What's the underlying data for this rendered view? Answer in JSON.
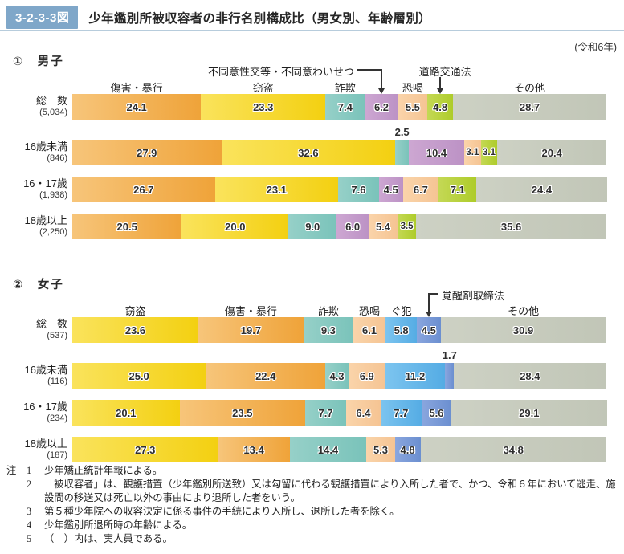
{
  "header": {
    "badge": "3-2-3-3図",
    "title": "少年鑑別所被収容者の非行名別構成比（男女別、年齢層別）",
    "year_note": "(令和6年)"
  },
  "chart_data": [
    {
      "type": "bar",
      "stacked": true,
      "orientation": "horizontal",
      "unit": "percent",
      "xlim": [
        0,
        100
      ],
      "title": "①　男子",
      "categories": [
        "傷害・暴行",
        "窃盗",
        "詐欺",
        "不同意性交等・不同意わいせつ",
        "恐喝",
        "道路交通法",
        "その他"
      ],
      "colors": [
        [
          "#F7C57A",
          "#EFA339"
        ],
        [
          "#FAE35C",
          "#F3D011"
        ],
        [
          "#96D0C8",
          "#7AC3BA"
        ],
        [
          "#CDA7D2",
          "#BC92C5"
        ],
        [
          "#FAD4AA",
          "#F5C493"
        ],
        [
          "#C4D855",
          "#AECC2A"
        ],
        [
          "#CDD1C4",
          "#C1C6B7"
        ]
      ],
      "column_headers": [
        0,
        1,
        2,
        4,
        6
      ],
      "callouts": [
        {
          "segment": 3,
          "style": "elbow-left"
        },
        {
          "segment": 5,
          "style": "arrow-down"
        }
      ],
      "rows": [
        {
          "label": "総　数",
          "count": "(5,034)",
          "values": [
            24.1,
            23.3,
            7.4,
            6.2,
            5.5,
            4.8,
            28.7
          ]
        },
        {
          "label": "16歳未満",
          "count": "(846)",
          "values": [
            27.9,
            32.6,
            2.5,
            10.4,
            3.1,
            3.1,
            20.4
          ],
          "above_labels": [
            2
          ]
        },
        {
          "label": "16・17歳",
          "count": "(1,938)",
          "values": [
            26.7,
            23.1,
            7.6,
            4.5,
            6.7,
            7.1,
            24.4
          ]
        },
        {
          "label": "18歳以上",
          "count": "(2,250)",
          "values": [
            20.5,
            20.0,
            9.0,
            6.0,
            5.4,
            3.5,
            35.6
          ]
        }
      ]
    },
    {
      "type": "bar",
      "stacked": true,
      "orientation": "horizontal",
      "unit": "percent",
      "xlim": [
        0,
        100
      ],
      "title": "②　女子",
      "categories": [
        "窃盗",
        "傷害・暴行",
        "詐欺",
        "恐喝",
        "ぐ犯",
        "覚醒剤取締法",
        "その他"
      ],
      "colors": [
        [
          "#FAE35C",
          "#F3D011"
        ],
        [
          "#F7C57A",
          "#EFA339"
        ],
        [
          "#96D0C8",
          "#7AC3BA"
        ],
        [
          "#FAD4AA",
          "#F5C493"
        ],
        [
          "#7CC4EF",
          "#55ACE4"
        ],
        [
          "#8AA6DE",
          "#6B8FD0"
        ],
        [
          "#CDD1C4",
          "#C1C6B7"
        ]
      ],
      "column_headers": [
        0,
        1,
        2,
        3,
        4,
        6
      ],
      "callouts": [
        {
          "segment": 5,
          "style": "elbow-right"
        }
      ],
      "rows": [
        {
          "label": "総　数",
          "count": "(537)",
          "values": [
            23.6,
            19.7,
            9.3,
            6.1,
            5.8,
            4.5,
            30.9
          ]
        },
        {
          "label": "16歳未満",
          "count": "(116)",
          "values": [
            25.0,
            22.4,
            4.3,
            6.9,
            11.2,
            1.7,
            28.4
          ],
          "above_labels": [
            5
          ]
        },
        {
          "label": "16・17歳",
          "count": "(234)",
          "values": [
            20.1,
            23.5,
            7.7,
            6.4,
            7.7,
            5.6,
            29.1
          ]
        },
        {
          "label": "18歳以上",
          "count": "(187)",
          "values": [
            27.3,
            13.4,
            14.4,
            5.3,
            0,
            4.8,
            34.8
          ]
        }
      ]
    }
  ],
  "notes": {
    "heading": "注",
    "items": [
      {
        "num": "1",
        "text": "少年矯正統計年報による。"
      },
      {
        "num": "2",
        "text": "「被収容者」は、観護措置（少年鑑別所送致）又は勾留に代わる観護措置により入所した者で、かつ、令和６年において逃走、施設間の移送又は死亡以外の事由により退所した者をいう。"
      },
      {
        "num": "3",
        "text": "第５種少年院への収容決定に係る事件の手続により入所し、退所した者を除く。"
      },
      {
        "num": "4",
        "text": "少年鑑別所退所時の年齢による。"
      },
      {
        "num": "5",
        "text": "（　）内は、実人員である。"
      }
    ]
  }
}
